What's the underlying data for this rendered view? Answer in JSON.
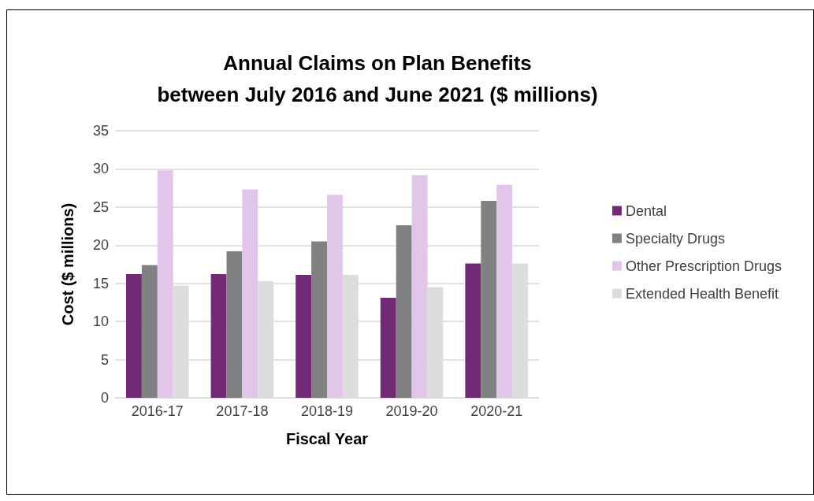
{
  "chart_data": {
    "type": "bar",
    "title": "Annual Claims on Plan Benefits\nbetween July 2016 and June 2021 ($ millions)",
    "xlabel": "Fiscal Year",
    "ylabel": "Cost ($ millions)",
    "categories": [
      "2016-17",
      "2017-18",
      "2018-19",
      "2019-20",
      "2020-21"
    ],
    "series": [
      {
        "name": "Dental",
        "color": "#722a77",
        "values": [
          16.2,
          16.2,
          16.1,
          13.1,
          17.6
        ]
      },
      {
        "name": "Specialty Drugs",
        "color": "#808183",
        "values": [
          17.4,
          19.2,
          20.5,
          22.6,
          25.8
        ]
      },
      {
        "name": "Other Prescription Drugs",
        "color": "#e1c6ea",
        "values": [
          29.8,
          27.3,
          26.6,
          29.2,
          27.9
        ]
      },
      {
        "name": "Extended Health Benefit",
        "color": "#dddddd",
        "values": [
          14.7,
          15.3,
          16.1,
          14.5,
          17.6
        ]
      }
    ],
    "ylim": [
      0,
      35
    ],
    "yticks": [
      0,
      5,
      10,
      15,
      20,
      25,
      30,
      35
    ],
    "grid": "y",
    "legend": "right"
  }
}
